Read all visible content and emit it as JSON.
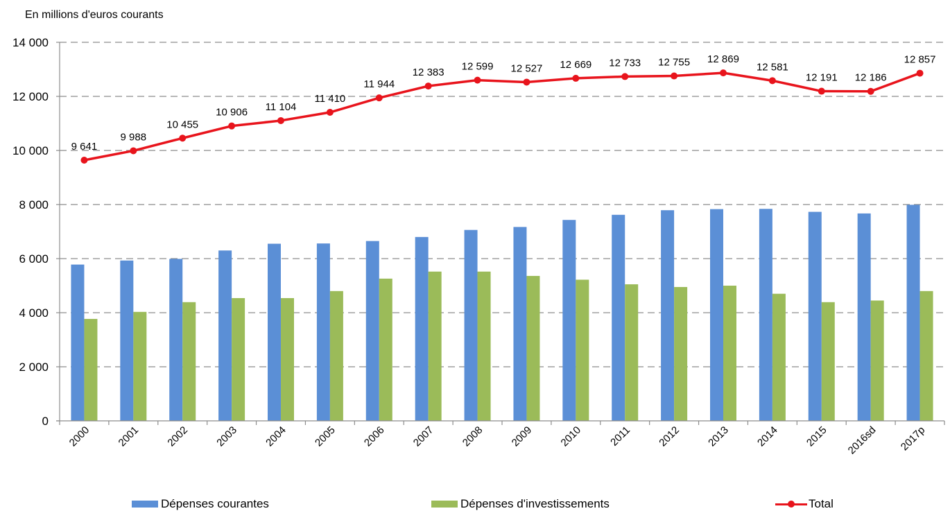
{
  "chart_data": {
    "type": "bar",
    "unit_label": "En millions d'euros courants",
    "categories": [
      "2000",
      "2001",
      "2002",
      "2003",
      "2004",
      "2005",
      "2006",
      "2007",
      "2008",
      "2009",
      "2010",
      "2011",
      "2012",
      "2013",
      "2014",
      "2015",
      "2016sd",
      "2017p"
    ],
    "ylim": [
      0,
      14000
    ],
    "yticks": [
      0,
      2000,
      4000,
      6000,
      8000,
      10000,
      12000,
      14000
    ],
    "ytick_labels": [
      "0",
      "2 000",
      "4 000",
      "6 000",
      "8 000",
      "10 000",
      "12 000",
      "14 000"
    ],
    "grid": true,
    "legend_position": "bottom",
    "series": [
      {
        "name": "Dépenses courantes",
        "type": "bar",
        "color": "#5b8fd6",
        "values": [
          5780,
          5930,
          5990,
          6300,
          6550,
          6560,
          6650,
          6800,
          7060,
          7170,
          7430,
          7620,
          7790,
          7830,
          7840,
          7730,
          7670,
          7990
        ]
      },
      {
        "name": "Dépenses d'investissements",
        "type": "bar",
        "color": "#9bbb59",
        "values": [
          3770,
          4030,
          4390,
          4540,
          4540,
          4800,
          5260,
          5520,
          5520,
          5360,
          5220,
          5050,
          4950,
          5000,
          4700,
          4390,
          4450,
          4800
        ]
      },
      {
        "name": "Total",
        "type": "line",
        "color": "#e8141c",
        "values": [
          9641,
          9988,
          10455,
          10906,
          11104,
          11410,
          11944,
          12383,
          12599,
          12527,
          12669,
          12733,
          12755,
          12869,
          12581,
          12191,
          12186,
          12857
        ],
        "labels": [
          "9 641",
          "9 988",
          "10 455",
          "10 906",
          "11 104",
          "11 410",
          "11 944",
          "12 383",
          "12 599",
          "12 527",
          "12 669",
          "12 733",
          "12 755",
          "12 869",
          "12 581",
          "12 191",
          "12 186",
          "12 857"
        ]
      }
    ]
  }
}
